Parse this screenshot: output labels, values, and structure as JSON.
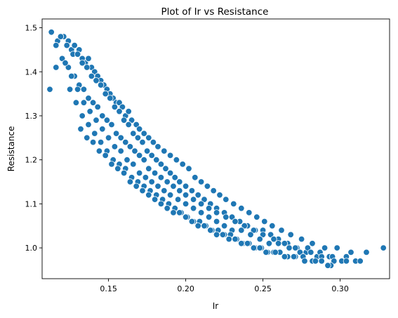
{
  "chart_data": {
    "type": "scatter",
    "title": "Plot of Ir vs Resistance",
    "xlabel": "Ir",
    "ylabel": "Resistance",
    "xlim": [
      0.107,
      0.332
    ],
    "ylim": [
      0.93,
      1.52
    ],
    "xticks": [
      0.15,
      0.2,
      0.25,
      0.3
    ],
    "xtick_labels": [
      "0.15",
      "0.20",
      "0.25",
      "0.30"
    ],
    "yticks": [
      1.0,
      1.1,
      1.2,
      1.3,
      1.4,
      1.5
    ],
    "ytick_labels": [
      "1.0",
      "1.1",
      "1.2",
      "1.3",
      "1.4",
      "1.5"
    ],
    "grid": false,
    "marker_color": "#1f77b4",
    "series": [
      {
        "x": [
          0.113,
          0.117,
          0.121,
          0.124,
          0.126,
          0.128,
          0.131,
          0.133,
          0.135,
          0.137,
          0.139,
          0.141,
          0.143,
          0.145,
          0.147,
          0.149,
          0.151,
          0.153,
          0.155,
          0.157,
          0.159,
          0.161,
          0.163,
          0.165,
          0.168,
          0.17,
          0.173,
          0.176,
          0.179,
          0.182,
          0.186,
          0.19,
          0.194,
          0.198,
          0.202,
          0.206,
          0.21,
          0.214,
          0.218,
          0.222,
          0.226,
          0.231,
          0.236,
          0.241,
          0.246,
          0.251,
          0.256,
          0.262,
          0.268,
          0.275,
          0.282,
          0.29,
          0.298,
          0.307,
          0.317,
          0.328,
          0.119,
          0.123,
          0.127,
          0.13,
          0.133,
          0.136,
          0.139,
          0.142,
          0.145,
          0.148,
          0.151,
          0.154,
          0.157,
          0.16,
          0.163,
          0.166,
          0.169,
          0.172,
          0.175,
          0.178,
          0.181,
          0.184,
          0.187,
          0.19,
          0.193,
          0.196,
          0.2,
          0.204,
          0.208,
          0.212,
          0.216,
          0.22,
          0.225,
          0.23,
          0.235,
          0.24,
          0.245,
          0.25,
          0.255,
          0.26,
          0.266,
          0.272,
          0.278,
          0.285,
          0.293,
          0.301,
          0.31,
          0.116,
          0.12,
          0.124,
          0.128,
          0.131,
          0.134,
          0.137,
          0.14,
          0.143,
          0.146,
          0.149,
          0.152,
          0.155,
          0.158,
          0.161,
          0.164,
          0.167,
          0.17,
          0.173,
          0.176,
          0.18,
          0.184,
          0.188,
          0.192,
          0.196,
          0.2,
          0.205,
          0.21,
          0.215,
          0.22,
          0.226,
          0.232,
          0.238,
          0.244,
          0.25,
          0.257,
          0.264,
          0.271,
          0.279,
          0.287,
          0.295,
          0.304,
          0.313,
          0.112,
          0.116,
          0.122,
          0.126,
          0.13,
          0.134,
          0.138,
          0.142,
          0.146,
          0.15,
          0.154,
          0.158,
          0.162,
          0.166,
          0.17,
          0.174,
          0.178,
          0.182,
          0.186,
          0.19,
          0.195,
          0.2,
          0.205,
          0.21,
          0.215,
          0.22,
          0.225,
          0.23,
          0.236,
          0.242,
          0.248,
          0.254,
          0.26,
          0.267,
          0.274,
          0.281,
          0.288,
          0.296,
          0.304,
          0.125,
          0.129,
          0.133,
          0.137,
          0.141,
          0.145,
          0.149,
          0.153,
          0.157,
          0.161,
          0.165,
          0.169,
          0.173,
          0.177,
          0.181,
          0.185,
          0.189,
          0.193,
          0.197,
          0.201,
          0.205,
          0.209,
          0.213,
          0.217,
          0.221,
          0.225,
          0.229,
          0.233,
          0.237,
          0.241,
          0.245,
          0.249,
          0.253,
          0.257,
          0.261,
          0.266,
          0.271,
          0.276,
          0.282,
          0.288,
          0.294,
          0.132,
          0.136,
          0.14,
          0.144,
          0.148,
          0.152,
          0.156,
          0.16,
          0.164,
          0.168,
          0.172,
          0.176,
          0.18,
          0.184,
          0.188,
          0.192,
          0.196,
          0.2,
          0.204,
          0.208,
          0.212,
          0.216,
          0.22,
          0.224,
          0.228,
          0.232,
          0.236,
          0.24,
          0.244,
          0.248,
          0.252,
          0.258,
          0.264,
          0.27,
          0.277,
          0.284,
          0.292
        ],
        "y": [
          1.49,
          1.47,
          1.48,
          1.47,
          1.45,
          1.46,
          1.45,
          1.43,
          1.42,
          1.43,
          1.41,
          1.4,
          1.39,
          1.38,
          1.37,
          1.36,
          1.35,
          1.34,
          1.33,
          1.33,
          1.32,
          1.3,
          1.31,
          1.29,
          1.28,
          1.27,
          1.26,
          1.25,
          1.24,
          1.23,
          1.22,
          1.21,
          1.2,
          1.19,
          1.18,
          1.16,
          1.15,
          1.14,
          1.13,
          1.12,
          1.11,
          1.1,
          1.09,
          1.08,
          1.07,
          1.06,
          1.05,
          1.04,
          1.03,
          1.02,
          1.01,
          1.0,
          1.0,
          0.99,
          0.99,
          1.0,
          1.48,
          1.46,
          1.44,
          1.44,
          1.42,
          1.41,
          1.39,
          1.38,
          1.37,
          1.35,
          1.34,
          1.32,
          1.31,
          1.29,
          1.28,
          1.26,
          1.25,
          1.24,
          1.22,
          1.21,
          1.2,
          1.19,
          1.18,
          1.17,
          1.16,
          1.15,
          1.14,
          1.13,
          1.12,
          1.11,
          1.1,
          1.09,
          1.08,
          1.07,
          1.06,
          1.05,
          1.04,
          1.04,
          1.03,
          1.02,
          1.01,
          1.0,
          0.99,
          0.98,
          0.98,
          0.97,
          0.97,
          1.46,
          1.43,
          1.41,
          1.39,
          1.37,
          1.36,
          1.34,
          1.33,
          1.32,
          1.3,
          1.29,
          1.28,
          1.26,
          1.25,
          1.24,
          1.23,
          1.22,
          1.21,
          1.2,
          1.18,
          1.17,
          1.16,
          1.15,
          1.14,
          1.13,
          1.12,
          1.11,
          1.1,
          1.09,
          1.08,
          1.07,
          1.06,
          1.05,
          1.04,
          1.03,
          1.02,
          1.01,
          1.0,
          1.0,
          0.99,
          0.98,
          0.98,
          0.97,
          1.36,
          1.41,
          1.42,
          1.39,
          1.36,
          1.33,
          1.31,
          1.29,
          1.27,
          1.25,
          1.23,
          1.22,
          1.2,
          1.19,
          1.17,
          1.16,
          1.15,
          1.14,
          1.13,
          1.12,
          1.11,
          1.1,
          1.09,
          1.08,
          1.07,
          1.06,
          1.05,
          1.04,
          1.04,
          1.03,
          1.02,
          1.01,
          1.01,
          1.0,
          0.99,
          0.99,
          0.98,
          0.97,
          0.97,
          1.36,
          1.33,
          1.3,
          1.28,
          1.26,
          1.24,
          1.22,
          1.2,
          1.19,
          1.18,
          1.16,
          1.15,
          1.14,
          1.13,
          1.12,
          1.11,
          1.1,
          1.09,
          1.08,
          1.07,
          1.06,
          1.06,
          1.05,
          1.04,
          1.04,
          1.03,
          1.03,
          1.02,
          1.01,
          1.01,
          1.0,
          1.0,
          0.99,
          0.99,
          0.99,
          0.98,
          0.98,
          0.98,
          0.97,
          0.97,
          0.96,
          1.27,
          1.25,
          1.24,
          1.22,
          1.21,
          1.19,
          1.18,
          1.17,
          1.15,
          1.14,
          1.13,
          1.12,
          1.11,
          1.1,
          1.09,
          1.08,
          1.08,
          1.07,
          1.06,
          1.05,
          1.05,
          1.04,
          1.03,
          1.03,
          1.02,
          1.02,
          1.01,
          1.01,
          1.0,
          1.0,
          0.99,
          0.99,
          0.98,
          0.98,
          0.97,
          0.97,
          0.96
        ]
      }
    ]
  }
}
